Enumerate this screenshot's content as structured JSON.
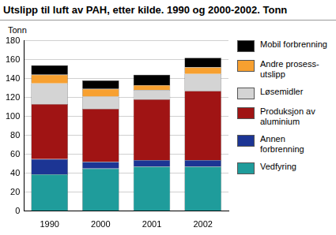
{
  "chart_data": {
    "type": "bar",
    "title": "Utslipp til luft av PAH, etter kilde. 1990 og 2000-2002. Tonn",
    "y_label": "Tonn",
    "categories": [
      "1990",
      "2000",
      "2001",
      "2002"
    ],
    "series": [
      {
        "name": "Vedfyring",
        "color": "#1f9c9b",
        "values": [
          39,
          45,
          47,
          47
        ]
      },
      {
        "name": "Annen forbrenning",
        "color": "#1c3594",
        "values": [
          16,
          7,
          7,
          7
        ]
      },
      {
        "name": "Produksjon av aluminium",
        "color": "#a01414",
        "values": [
          58,
          56,
          64,
          73
        ]
      },
      {
        "name": "Løsemidler",
        "color": "#d4d4d4",
        "values": [
          22,
          13,
          10,
          18
        ]
      },
      {
        "name": "Andre prosess-utslipp",
        "color": "#f7a030",
        "values": [
          9,
          8,
          5,
          7
        ]
      },
      {
        "name": "Mobil forbrenning",
        "color": "#000000",
        "values": [
          10,
          9,
          11,
          10
        ]
      }
    ],
    "stacked": true,
    "ylim": [
      0,
      180
    ],
    "yticks": [
      0,
      20,
      40,
      60,
      80,
      100,
      120,
      140,
      160,
      180
    ],
    "grid": true,
    "legend": "right"
  }
}
